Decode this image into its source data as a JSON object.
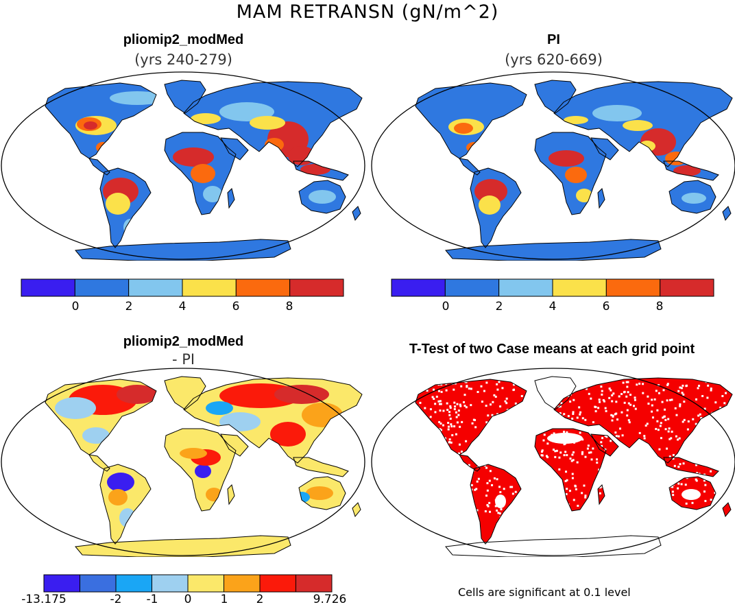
{
  "title": "MAM RETRANSN (gN/m^2)",
  "panels": [
    {
      "id": "top-left",
      "title": "pliomip2_modMed",
      "subtitle": "(yrs 240-279)"
    },
    {
      "id": "top-right",
      "title": "PI",
      "subtitle": "(yrs 620-669)"
    },
    {
      "id": "bottom-left",
      "title": "pliomip2_modMed",
      "subtitle": "- PI"
    },
    {
      "id": "bottom-right",
      "title": "T-Test of two Case means at each grid point",
      "subtitle": ""
    }
  ],
  "colorbars": {
    "absolute": {
      "colors": [
        "#3a1ef0",
        "#2f78e0",
        "#82c6ee",
        "#fbe14a",
        "#fb6a0e",
        "#d62b2b"
      ],
      "tick_labels": [
        "0",
        "2",
        "4",
        "6",
        "8"
      ]
    },
    "difference": {
      "colors": [
        "#3a1ef0",
        "#3a6fe0",
        "#1aa6f5",
        "#9ed0f0",
        "#fbe86a",
        "#fba31a",
        "#fb1a0a",
        "#d62b2b"
      ],
      "tick_labels": [
        "-13.175",
        "-2",
        "-1",
        "0",
        "1",
        "2",
        "9.726"
      ]
    }
  },
  "map_colors": {
    "land_absolute": "#2f78e0",
    "land_difference": "#fbe86a",
    "significant": "#f50000",
    "ocean": "#ffffff"
  },
  "footnote": "Cells are significant at 0.1 level"
}
